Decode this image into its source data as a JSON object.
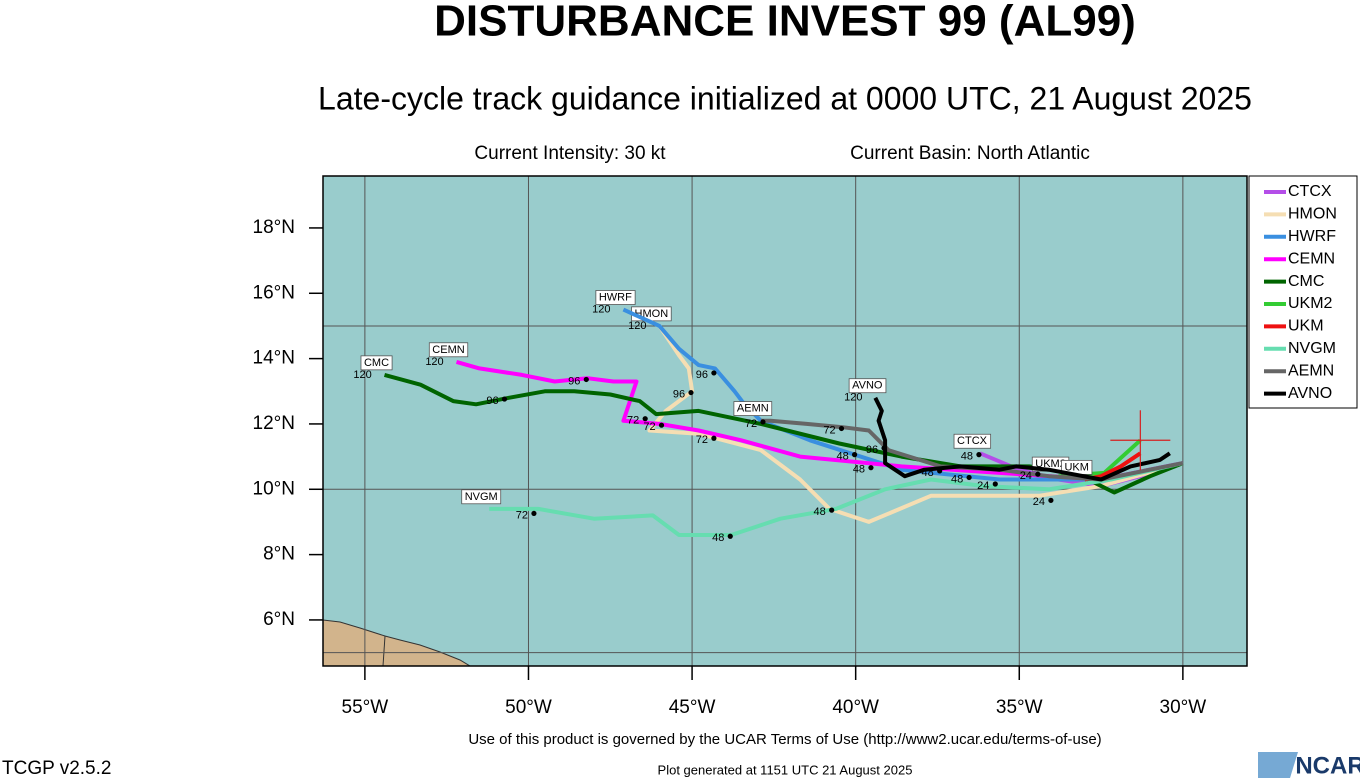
{
  "title": "DISTURBANCE INVEST 99 (AL99)",
  "subtitle": "Late-cycle track guidance initialized at 0000 UTC, 21 August 2025",
  "intensity": "Current Intensity: 30 kt",
  "basin": "Current Basin: North Atlantic",
  "terms": "Use of this product is governed by the UCAR Terms of Use (http://www2.ucar.edu/terms-of-use)",
  "version": "TCGP v2.5.2",
  "generated": "Plot generated at 1151 UTC   21 August 2025",
  "logo": "NCAR",
  "chart_data": {
    "type": "track",
    "xlim": [
      -56.28,
      -28.04
    ],
    "ylim": [
      4.59,
      19.59
    ],
    "xticks": [
      {
        "value": -55,
        "label": "55°W"
      },
      {
        "value": -50,
        "label": "50°W"
      },
      {
        "value": -45,
        "label": "45°W"
      },
      {
        "value": -40,
        "label": "40°W"
      },
      {
        "value": -35,
        "label": "35°W"
      },
      {
        "value": -30,
        "label": "30°W"
      }
    ],
    "yticks": [
      {
        "value": 6,
        "label": "6°N"
      },
      {
        "value": 8,
        "label": "8°N"
      },
      {
        "value": 10,
        "label": "10°N"
      },
      {
        "value": 12,
        "label": "12°N"
      },
      {
        "value": 14,
        "label": "14°N"
      },
      {
        "value": 16,
        "label": "16°N"
      },
      {
        "value": 18,
        "label": "18°N"
      }
    ],
    "ygrid": [
      5,
      10,
      15
    ],
    "current_position": {
      "x": -31.3,
      "y": 11.5,
      "color": "#d62020"
    },
    "series": [
      {
        "name": "CTCX",
        "color": "#b44ee8",
        "x": [
          -30.0,
          -31.3,
          -32.5,
          -33.8,
          -35.0,
          -36.2
        ],
        "values": [
          10.8,
          10.4,
          10.1,
          10.3,
          10.6,
          11.1
        ]
      },
      {
        "name": "HMON",
        "color": "#f5deb3",
        "end_hour": 120,
        "x": [
          -30.0,
          -32.5,
          -34.4,
          -37.7,
          -39.6,
          -40.8,
          -41.7,
          -42.9,
          -44.8,
          -46.3,
          -45.8,
          -45.0,
          -45.1,
          -45.4,
          -46.0
        ],
        "values": [
          10.8,
          10.1,
          9.8,
          9.8,
          9.0,
          9.4,
          10.3,
          11.2,
          11.7,
          11.8,
          12.4,
          13.0,
          13.7,
          14.1,
          15.0
        ]
      },
      {
        "name": "HWRF",
        "color": "#3a8fe0",
        "end_hour": 120,
        "x": [
          -30.0,
          -32.5,
          -35.6,
          -38.6,
          -41.4,
          -42.9,
          -43.4,
          -43.7,
          -44.3,
          -44.8,
          -45.4,
          -46.0,
          -47.1
        ],
        "values": [
          10.8,
          10.3,
          10.3,
          10.6,
          11.5,
          12.1,
          12.6,
          13.0,
          13.7,
          13.8,
          14.3,
          15.0,
          15.5
        ]
      },
      {
        "name": "CEMN",
        "color": "#ff00ff",
        "end_hour": 120,
        "x": [
          -30.0,
          -32.5,
          -35.6,
          -38.6,
          -41.7,
          -43.5,
          -44.8,
          -46.0,
          -47.1,
          -46.7,
          -47.4,
          -48.2,
          -49.2,
          -50.2,
          -51.5,
          -52.2
        ],
        "values": [
          10.8,
          10.3,
          10.5,
          10.7,
          11.0,
          11.5,
          11.8,
          12.0,
          12.1,
          13.3,
          13.3,
          13.4,
          13.3,
          13.5,
          13.7,
          13.9
        ]
      },
      {
        "name": "CMC",
        "color": "#006400",
        "end_hour": 120,
        "x": [
          -30.0,
          -31.0,
          -32.1,
          -33.1,
          -33.8,
          -34.7,
          -36.8,
          -38.6,
          -40.5,
          -42.9,
          -44.8,
          -46.1,
          -46.6,
          -47.5,
          -48.6,
          -49.5,
          -50.6,
          -51.6,
          -52.3,
          -53.3,
          -54.4
        ],
        "values": [
          10.8,
          10.4,
          9.9,
          10.4,
          10.6,
          10.7,
          10.7,
          11.0,
          11.4,
          12.0,
          12.4,
          12.3,
          12.7,
          12.9,
          13.0,
          13.0,
          12.8,
          12.6,
          12.7,
          13.2,
          13.5
        ]
      },
      {
        "name": "UKM2",
        "color": "#33cc33",
        "x": [
          -31.3,
          -32.4,
          -33.8
        ],
        "values": [
          11.5,
          10.5,
          10.4
        ]
      },
      {
        "name": "UKM",
        "color": "#ee1111",
        "x": [
          -31.3,
          -31.9,
          -32.5,
          -33.0
        ],
        "values": [
          11.1,
          10.7,
          10.4,
          10.3
        ]
      },
      {
        "name": "NVGM",
        "color": "#66ddb0",
        "x": [
          -30.0,
          -32.2,
          -34.1,
          -36.1,
          -37.7,
          -39.1,
          -40.6,
          -42.3,
          -43.8,
          -45.4,
          -46.2,
          -48.0,
          -49.7,
          -51.2
        ],
        "values": [
          10.8,
          10.3,
          10.0,
          10.1,
          10.3,
          10.0,
          9.4,
          9.1,
          8.6,
          8.6,
          9.2,
          9.1,
          9.4,
          9.4
        ]
      },
      {
        "name": "AEMN",
        "color": "#666666",
        "x": [
          -30.0,
          -32.5,
          -34.1,
          -35.6,
          -37.4,
          -39.0,
          -39.6,
          -40.4,
          -41.5,
          -42.6,
          -42.9
        ],
        "values": [
          10.8,
          10.3,
          10.4,
          10.6,
          10.7,
          11.2,
          11.8,
          11.9,
          12.0,
          12.1,
          12.1
        ]
      },
      {
        "name": "AVNO",
        "color": "#000000",
        "end_hour": 120,
        "x": [
          -30.4,
          -30.7,
          -31.6,
          -32.5,
          -34.1,
          -35.1,
          -35.6,
          -36.8,
          -37.9,
          -38.5,
          -39.1,
          -39.1,
          -39.3,
          -39.2,
          -39.4
        ],
        "values": [
          11.1,
          10.9,
          10.7,
          10.3,
          10.6,
          10.7,
          10.6,
          10.7,
          10.6,
          10.4,
          10.8,
          11.5,
          12.1,
          12.4,
          12.8
        ]
      }
    ],
    "tau_labels": [
      {
        "label": 72,
        "x": -46.8,
        "y": 12.1
      },
      {
        "label": 72,
        "x": -46.3,
        "y": 11.9
      },
      {
        "label": 72,
        "x": -44.7,
        "y": 11.5
      },
      {
        "label": 96,
        "x": -48.6,
        "y": 13.3
      },
      {
        "label": 96,
        "x": -51.1,
        "y": 12.7
      },
      {
        "label": 96,
        "x": -44.7,
        "y": 13.5
      },
      {
        "label": 96,
        "x": -45.4,
        "y": 12.9
      },
      {
        "label": 72,
        "x": -40.8,
        "y": 11.8
      },
      {
        "label": 72,
        "x": -43.2,
        "y": 12.0
      },
      {
        "label": 96,
        "x": -39.5,
        "y": 11.2
      },
      {
        "label": 48,
        "x": -40.4,
        "y": 11.0
      },
      {
        "label": 48,
        "x": -39.9,
        "y": 10.6
      },
      {
        "label": 48,
        "x": -37.8,
        "y": 10.5
      },
      {
        "label": 48,
        "x": -36.9,
        "y": 10.3
      },
      {
        "label": 48,
        "x": -36.6,
        "y": 11.0
      },
      {
        "label": 24,
        "x": -36.1,
        "y": 10.1
      },
      {
        "label": 24,
        "x": -34.8,
        "y": 10.4
      },
      {
        "label": 24,
        "x": -34.4,
        "y": 9.6
      },
      {
        "label": 48,
        "x": -41.1,
        "y": 9.3
      },
      {
        "label": 48,
        "x": -44.2,
        "y": 8.5
      },
      {
        "label": 72,
        "x": -50.2,
        "y": 9.2
      }
    ]
  }
}
